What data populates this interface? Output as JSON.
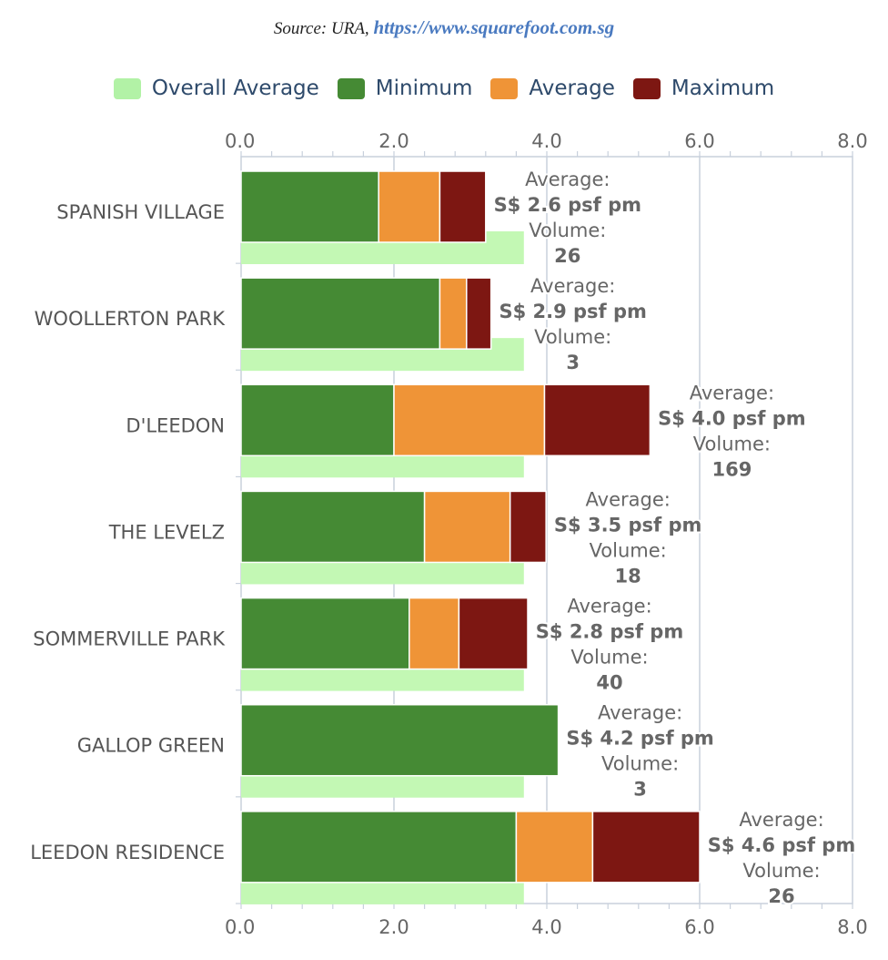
{
  "source": {
    "prefix": "Source: URA, ",
    "link": "https://www.squarefoot.com.sg"
  },
  "legend": [
    {
      "name": "Overall Average",
      "color": "#b2f2a6"
    },
    {
      "name": "Minimum",
      "color": "#458a34"
    },
    {
      "name": "Average",
      "color": "#ef9437"
    },
    {
      "name": "Maximum",
      "color": "#7d1712"
    }
  ],
  "chart_data": {
    "type": "bar",
    "orientation": "horizontal",
    "stacked": true,
    "xlim": [
      0,
      8
    ],
    "ticks": [
      "0.0",
      "2.0",
      "4.0",
      "6.0",
      "8.0"
    ],
    "grid": true,
    "legend_position": "top",
    "colors": {
      "overall": "#c3f8b4",
      "min": "#458a34",
      "avg": "#ef9437",
      "max": "#7d1712"
    },
    "overall_average": 3.7,
    "categories": [
      "SPANISH VILLAGE",
      "WOOLLERTON PARK",
      "D'LEEDON",
      "THE LEVELZ",
      "SOMMERVILLE PARK",
      "GALLOP GREEN",
      "LEEDON RESIDENCE"
    ],
    "series": [
      {
        "name": "Minimum",
        "values": [
          1.8,
          2.6,
          2.0,
          2.4,
          2.2,
          4.15,
          3.6
        ]
      },
      {
        "name": "Average",
        "values": [
          0.8,
          0.35,
          1.97,
          1.12,
          0.65,
          0,
          1.0
        ]
      },
      {
        "name": "Maximum",
        "values": [
          0.6,
          0.32,
          1.38,
          0.47,
          0.9,
          0,
          1.4
        ]
      }
    ],
    "labels": [
      {
        "avg_label": "Average:",
        "avg_value": "S$ 2.6 psf pm",
        "vol_label": "Volume:",
        "vol_value": "26"
      },
      {
        "avg_label": "Average:",
        "avg_value": "S$ 2.9 psf pm",
        "vol_label": "Volume:",
        "vol_value": "3"
      },
      {
        "avg_label": "Average:",
        "avg_value": "S$ 4.0 psf pm",
        "vol_label": "Volume:",
        "vol_value": "169"
      },
      {
        "avg_label": "Average:",
        "avg_value": "S$ 3.5 psf pm",
        "vol_label": "Volume:",
        "vol_value": "18"
      },
      {
        "avg_label": "Average:",
        "avg_value": "S$ 2.8 psf pm",
        "vol_label": "Volume:",
        "vol_value": "40"
      },
      {
        "avg_label": "Average:",
        "avg_value": "S$ 4.2 psf pm",
        "vol_label": "Volume:",
        "vol_value": "3"
      },
      {
        "avg_label": "Average:",
        "avg_value": "S$ 4.6 psf pm",
        "vol_label": "Volume:",
        "vol_value": "26"
      }
    ]
  }
}
